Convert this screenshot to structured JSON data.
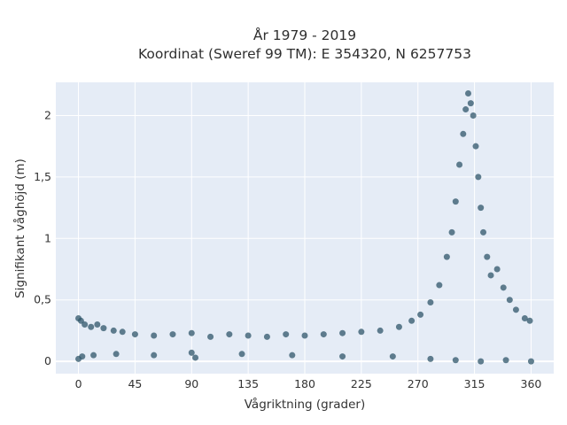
{
  "chart_data": {
    "type": "scatter",
    "title_line1": "År 1979 - 2019",
    "title_line2": "Koordinat (Sweref 99 TM): E 354320, N 6257753",
    "xlabel": "Vågriktning (grader)",
    "ylabel": "Signifikant våghöjd (m)",
    "xlim": [
      -18,
      378
    ],
    "ylim": [
      -0.1,
      2.27
    ],
    "xticks": [
      0,
      45,
      90,
      135,
      180,
      225,
      270,
      315,
      360
    ],
    "xtick_labels": [
      "0",
      "45",
      "90",
      "135",
      "180",
      "225",
      "270",
      "315",
      "360"
    ],
    "yticks": [
      0,
      0.5,
      1,
      1.5,
      2
    ],
    "ytick_labels": [
      "0",
      "0,5",
      "1",
      "1,5",
      "2"
    ],
    "grid": true,
    "marker_color": "#2f5569",
    "background_color": "#e5ecf6",
    "series": [
      {
        "points": [
          [
            0,
            0.35
          ],
          [
            2,
            0.33
          ],
          [
            5,
            0.3
          ],
          [
            10,
            0.28
          ],
          [
            15,
            0.3
          ],
          [
            20,
            0.27
          ],
          [
            28,
            0.25
          ],
          [
            35,
            0.24
          ],
          [
            45,
            0.22
          ],
          [
            60,
            0.21
          ],
          [
            75,
            0.22
          ],
          [
            90,
            0.23
          ],
          [
            105,
            0.2
          ],
          [
            120,
            0.22
          ],
          [
            135,
            0.21
          ],
          [
            150,
            0.2
          ],
          [
            165,
            0.22
          ],
          [
            180,
            0.21
          ],
          [
            195,
            0.22
          ],
          [
            210,
            0.23
          ],
          [
            225,
            0.24
          ],
          [
            240,
            0.25
          ],
          [
            255,
            0.28
          ],
          [
            265,
            0.33
          ],
          [
            272,
            0.38
          ],
          [
            280,
            0.48
          ],
          [
            287,
            0.62
          ],
          [
            293,
            0.85
          ],
          [
            297,
            1.05
          ],
          [
            300,
            1.3
          ],
          [
            303,
            1.6
          ],
          [
            306,
            1.85
          ],
          [
            308,
            2.05
          ],
          [
            310,
            2.18
          ],
          [
            312,
            2.1
          ],
          [
            314,
            2.0
          ],
          [
            316,
            1.75
          ],
          [
            318,
            1.5
          ],
          [
            320,
            1.25
          ],
          [
            322,
            1.05
          ],
          [
            325,
            0.85
          ],
          [
            328,
            0.7
          ],
          [
            333,
            0.75
          ],
          [
            338,
            0.6
          ],
          [
            343,
            0.5
          ],
          [
            348,
            0.42
          ],
          [
            355,
            0.35
          ],
          [
            359,
            0.33
          ],
          [
            0,
            0.02
          ],
          [
            3,
            0.04
          ],
          [
            12,
            0.05
          ],
          [
            30,
            0.06
          ],
          [
            60,
            0.05
          ],
          [
            90,
            0.07
          ],
          [
            93,
            0.03
          ],
          [
            130,
            0.06
          ],
          [
            170,
            0.05
          ],
          [
            210,
            0.04
          ],
          [
            250,
            0.04
          ],
          [
            280,
            0.02
          ],
          [
            300,
            0.01
          ],
          [
            320,
            0.0
          ],
          [
            340,
            0.01
          ],
          [
            360,
            0.0
          ]
        ]
      }
    ]
  }
}
